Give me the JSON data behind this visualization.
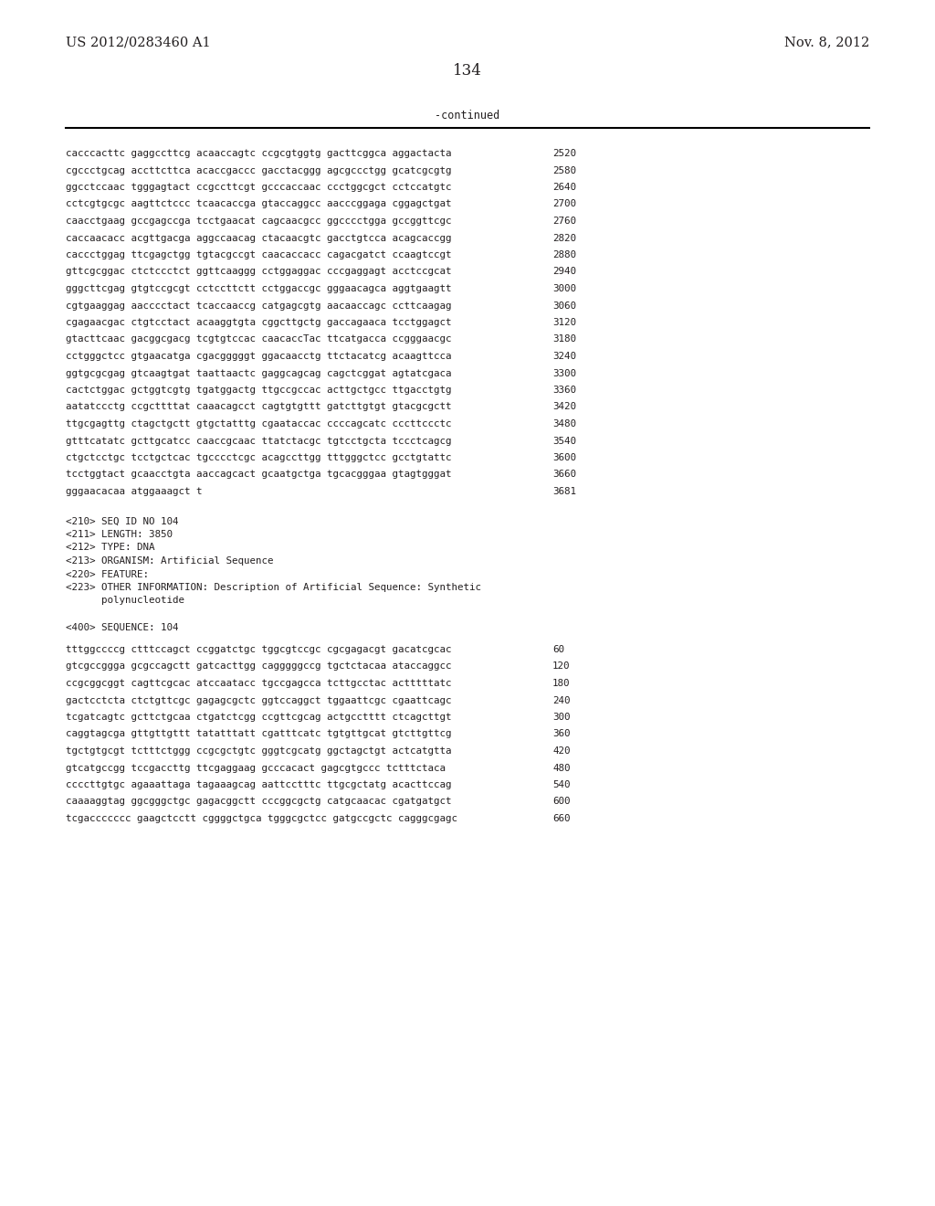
{
  "header_left": "US 2012/0283460 A1",
  "header_right": "Nov. 8, 2012",
  "page_number": "134",
  "continued_label": "-continued",
  "background_color": "#ffffff",
  "text_color": "#231f20",
  "sequence_lines": [
    [
      "cacccacttc gaggccttcg acaaccagtc ccgcgtggtg gacttcggca aggactacta",
      "2520"
    ],
    [
      "cgccctgcag accttcttca acaccgaccc gacctacggg agcgccctgg gcatcgcgtg",
      "2580"
    ],
    [
      "ggcctccaac tgggagtact ccgccttcgt gcccaccaac ccctggcgct cctccatgtc",
      "2640"
    ],
    [
      "cctcgtgcgc aagttctccc tcaacaccga gtaccaggcc aacccggaga cggagctgat",
      "2700"
    ],
    [
      "caacctgaag gccgagccga tcctgaacat cagcaacgcc ggcccctgga gccggttcgc",
      "2760"
    ],
    [
      "caccaacacc acgttgacga aggccaacag ctacaacgtc gacctgtcca acagcaccgg",
      "2820"
    ],
    [
      "caccctggag ttcgagctgg tgtacgccgt caacaccacc cagacgatct ccaagtccgt",
      "2880"
    ],
    [
      "gttcgcggac ctctccctct ggttcaaggg cctggaggac cccgaggagt acctccgcat",
      "2940"
    ],
    [
      "gggcttcgag gtgtccgcgt cctccttctt cctggaccgc gggaacagca aggtgaagtt",
      "3000"
    ],
    [
      "cgtgaaggag aacccctact tcaccaaccg catgagcgtg aacaaccagc ccttcaagag",
      "3060"
    ],
    [
      "cgagaacgac ctgtcctact acaaggtgta cggcttgctg gaccagaaca tcctggagct",
      "3120"
    ],
    [
      "gtacttcaac gacggcgacg tcgtgtccac caacaccTac ttcatgacca ccgggaacgc",
      "3180"
    ],
    [
      "cctgggctcc gtgaacatga cgacgggggt ggacaacctg ttctacatcg acaagttcca",
      "3240"
    ],
    [
      "ggtgcgcgag gtcaagtgat taattaactc gaggcagcag cagctcggat agtatcgaca",
      "3300"
    ],
    [
      "cactctggac gctggtcgtg tgatggactg ttgccgccac acttgctgcc ttgacctgtg",
      "3360"
    ],
    [
      "aatatccctg ccgcttttat caaacagcct cagtgtgttt gatcttgtgt gtacgcgctt",
      "3420"
    ],
    [
      "ttgcgagttg ctagctgctt gtgctatttg cgaataccac ccccagcatc cccttccctc",
      "3480"
    ],
    [
      "gtttcatatc gcttgcatcc caaccgcaac ttatctacgc tgtcctgcta tccctcagcg",
      "3540"
    ],
    [
      "ctgctcctgc tcctgctcac tgcccctcgc acagccttgg tttgggctcc gcctgtattc",
      "3600"
    ],
    [
      "tcctggtact gcaacctgta aaccagcact gcaatgctga tgcacgggaa gtagtgggat",
      "3660"
    ],
    [
      "gggaacacaa atggaaagct t",
      "3681"
    ]
  ],
  "metadata_lines": [
    "<210> SEQ ID NO 104",
    "<211> LENGTH: 3850",
    "<212> TYPE: DNA",
    "<213> ORGANISM: Artificial Sequence",
    "<220> FEATURE:",
    "<223> OTHER INFORMATION: Description of Artificial Sequence: Synthetic",
    "      polynucleotide",
    "",
    "<400> SEQUENCE: 104"
  ],
  "sequence_lines2": [
    [
      "tttggccccg ctttccagct ccggatctgc tggcgtccgc cgcgagacgt gacatcgcac",
      "60"
    ],
    [
      "gtcgccggga gcgccagctt gatcacttgg cagggggccg tgctctacaa ataccaggcc",
      "120"
    ],
    [
      "ccgcggcggt cagttcgcac atccaatacc tgccgagcca tcttgcctac actttttatc",
      "180"
    ],
    [
      "gactcctcta ctctgttcgc gagagcgctc ggtccaggct tggaattcgc cgaattcagc",
      "240"
    ],
    [
      "tcgatcagtc gcttctgcaa ctgatctcgg ccgttcgcag actgcctttt ctcagcttgt",
      "300"
    ],
    [
      "caggtagcga gttgttgttt tatatttatt cgatttcatc tgtgttgcat gtcttgttcg",
      "360"
    ],
    [
      "tgctgtgcgt tctttctggg ccgcgctgtc gggtcgcatg ggctagctgt actcatgtta",
      "420"
    ],
    [
      "gtcatgccgg tccgaccttg ttcgaggaag gcccacact gagcgtgccc tctttctaca",
      "480"
    ],
    [
      "ccccttgtgc agaaattaga tagaaagcag aattcctttc ttgcgctatg acacttccag",
      "540"
    ],
    [
      "caaaaggtag ggcgggctgc gagacggctt cccggcgctg catgcaacac cgatgatgct",
      "600"
    ],
    [
      "tcgaccccccc gaagctcctt cggggctgca tgggcgctcc gatgccgctc cagggcgagc",
      "660"
    ]
  ]
}
